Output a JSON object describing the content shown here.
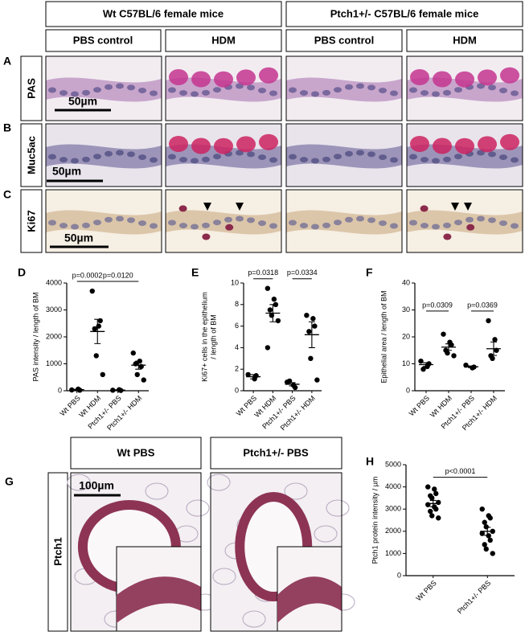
{
  "panel_letters": [
    "A",
    "B",
    "C",
    "D",
    "E",
    "F",
    "G",
    "H"
  ],
  "group_headers": [
    "Wt C57BL/6 female mice",
    "Ptch1+/- C57BL/6 female mice"
  ],
  "condition_headers": [
    "PBS control",
    "HDM",
    "PBS control",
    "HDM"
  ],
  "stains": [
    "PAS",
    "Muc5ac",
    "Ki67"
  ],
  "scale_bars": [
    "50µm",
    "50µm",
    "50µm"
  ],
  "panel_g": {
    "headers": [
      "Wt PBS",
      "Ptch1+/- PBS"
    ],
    "stain": "Ptch1",
    "scale_bar": "100µm"
  },
  "chart_data": [
    {
      "type": "dotplot",
      "y_label": "PAS intensity / length of BM",
      "categories": [
        "Wt PBS",
        "Wt HDM",
        "Ptch1+/- PBS",
        "Ptch1+/- HDM"
      ],
      "points": [
        [
          30,
          60,
          20
        ],
        [
          3700,
          2400,
          2600,
          2300,
          1300,
          600
        ],
        [
          20,
          40,
          10
        ],
        [
          1400,
          1100,
          900,
          1000,
          600,
          400
        ]
      ],
      "means": [
        40,
        2200,
        25,
        950
      ],
      "errors": [
        15,
        450,
        10,
        150
      ],
      "ylim": [
        0,
        4000
      ],
      "yticks": [
        0,
        1000,
        2000,
        3000,
        4000
      ],
      "color": "#000000",
      "annotations": [
        {
          "text": "p=0.0002",
          "between": [
            "Wt PBS",
            "Wt HDM"
          ]
        },
        {
          "text": "p=0.0120",
          "between": [
            "Wt HDM",
            "Ptch1+/- HDM"
          ]
        }
      ]
    },
    {
      "type": "dotplot",
      "y_label": [
        "Ki67+ cells in the epithelium",
        "/ length of BM"
      ],
      "categories": [
        "Wt PBS",
        "Wt HDM",
        "Ptch1+/- PBS",
        "Ptch1+/- HDM"
      ],
      "points": [
        [
          1.5,
          1.1,
          1.4
        ],
        [
          9.5,
          8.5,
          8,
          7.5,
          7,
          6.5,
          4
        ],
        [
          0.8,
          0.5,
          0.3,
          0.9
        ],
        [
          7,
          6.7,
          6,
          5.5,
          3,
          1
        ]
      ],
      "means": [
        1.3,
        7.2,
        0.6,
        5.2
      ],
      "errors": [
        0.2,
        0.8,
        0.15,
        1.2
      ],
      "ylim": [
        0,
        10
      ],
      "yticks": [
        0,
        2,
        4,
        6,
        8,
        10
      ],
      "color": "#000000",
      "annotations": [
        {
          "text": "p=0.0318",
          "between": [
            "Wt PBS",
            "Wt HDM"
          ]
        },
        {
          "text": "p=0.0334",
          "between": [
            "Ptch1+/- PBS",
            "Ptch1+/- HDM"
          ]
        }
      ]
    },
    {
      "type": "dotplot",
      "y_label": "Epithelial area / length of BM",
      "categories": [
        "Wt PBS",
        "Wt HDM",
        "Ptch1+/- PBS",
        "Ptch1+/- HDM"
      ],
      "points": [
        [
          11,
          9,
          10,
          8
        ],
        [
          21,
          18,
          17,
          15,
          14,
          13
        ],
        [
          9.5,
          8.5,
          8.8
        ],
        [
          26,
          19,
          15,
          13,
          12
        ]
      ],
      "means": [
        9.7,
        16.2,
        8.9,
        15.6
      ],
      "errors": [
        0.7,
        1.2,
        0.3,
        2.5
      ],
      "ylim": [
        0,
        40
      ],
      "yticks": [
        0,
        10,
        20,
        30,
        40
      ],
      "color": "#000000",
      "annotations": [
        {
          "text": "p=0.0309",
          "between": [
            "Wt PBS",
            "Wt HDM"
          ]
        },
        {
          "text": "p=0.0369",
          "between": [
            "Ptch1+/- PBS",
            "Ptch1+/- HDM"
          ]
        }
      ]
    },
    {
      "type": "dotplot",
      "y_label": "Ptch1 protein intensity / µm",
      "categories": [
        "Wt PBS",
        "Ptch1+/- PBS"
      ],
      "points": [
        [
          4000,
          3900,
          3700,
          3600,
          3500,
          3300,
          3200,
          3100,
          3000,
          2900,
          2700,
          2600
        ],
        [
          3000,
          2700,
          2600,
          2400,
          2200,
          2000,
          1900,
          1800,
          1600,
          1400,
          1200,
          1000
        ]
      ],
      "means": [
        3250,
        2000
      ],
      "errors": [
        140,
        180
      ],
      "ylim": [
        0,
        5000
      ],
      "yticks": [
        0,
        1000,
        2000,
        3000,
        4000,
        5000
      ],
      "color": "#000000",
      "annotations": [
        {
          "text": "p<0.0001",
          "between": [
            "Wt PBS",
            "Ptch1+/- PBS"
          ]
        }
      ]
    }
  ]
}
